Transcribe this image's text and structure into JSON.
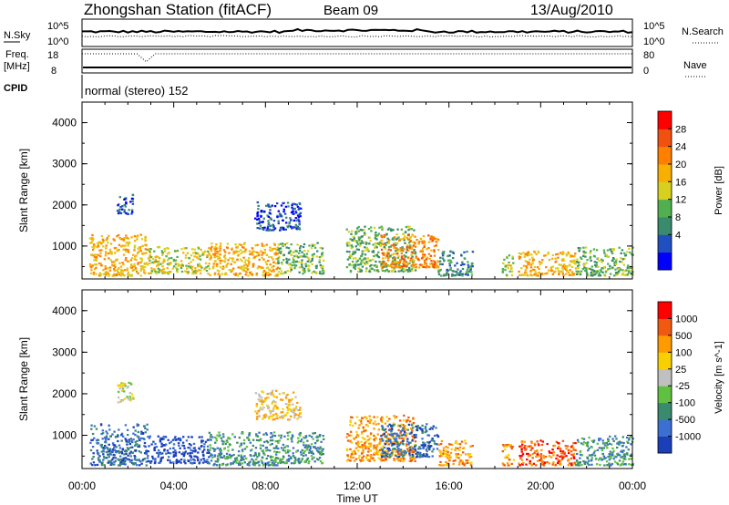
{
  "header": {
    "station": "Zhongshan Station (fitACF)",
    "beam": "Beam 09",
    "date": "13/Aug/2010"
  },
  "top_panel": {
    "nsky_label": "N.Sky",
    "nsky_ticks": [
      "10^5",
      "10^0"
    ],
    "nsearch_label": "N.Search",
    "nsearch_ticks": [
      "10^5",
      "10^0"
    ],
    "freq_label_1": "Freq.",
    "freq_label_2": "[MHz]",
    "freq_ticks": [
      "18",
      "8"
    ],
    "nave_label": "Nave",
    "nave_ticks": [
      "80",
      "0"
    ],
    "cpid_label": "CPID",
    "cpid_value": "normal (stereo) 152"
  },
  "chart_data": [
    {
      "type": "heatmap",
      "name": "power",
      "xlabel": "",
      "ylabel": "Slant Range [km]",
      "ylim": [
        200,
        4500
      ],
      "y_ticks": [
        "4000",
        "3000",
        "2000",
        "1000"
      ],
      "colorbar": {
        "label": "Power [dB]",
        "tick_labels": [
          "28",
          "24",
          "20",
          "16",
          "12",
          "8",
          "4"
        ],
        "colors": [
          "#0000ff",
          "#2050c0",
          "#3a8a6e",
          "#50b050",
          "#d8d020",
          "#f8b000",
          "#ff8000",
          "#f05010",
          "#ff0000"
        ]
      },
      "clusters": [
        {
          "t0": 0.3,
          "t1": 2.8,
          "r0": 300,
          "r1": 1300,
          "level": 5
        },
        {
          "t0": 1.5,
          "t1": 2.2,
          "r0": 1800,
          "r1": 2300,
          "level": 1
        },
        {
          "t0": 2.8,
          "t1": 5.5,
          "r0": 350,
          "r1": 1000,
          "level": 4
        },
        {
          "t0": 5.5,
          "t1": 8.5,
          "r0": 300,
          "r1": 1100,
          "level": 5
        },
        {
          "t0": 8.5,
          "t1": 10.5,
          "r0": 350,
          "r1": 1100,
          "level": 3
        },
        {
          "t0": 7.5,
          "t1": 9.5,
          "r0": 1400,
          "r1": 2100,
          "level": 1
        },
        {
          "t0": 11.5,
          "t1": 14.5,
          "r0": 400,
          "r1": 1500,
          "level": 3
        },
        {
          "t0": 13.0,
          "t1": 15.5,
          "r0": 500,
          "r1": 1300,
          "level": 6
        },
        {
          "t0": 15.5,
          "t1": 17.0,
          "r0": 300,
          "r1": 900,
          "level": 2
        },
        {
          "t0": 18.3,
          "t1": 18.8,
          "r0": 300,
          "r1": 800,
          "level": 4
        },
        {
          "t0": 19.0,
          "t1": 21.5,
          "r0": 300,
          "r1": 900,
          "level": 5
        },
        {
          "t0": 21.5,
          "t1": 24.0,
          "r0": 300,
          "r1": 1000,
          "level": 3
        }
      ]
    },
    {
      "type": "heatmap",
      "name": "velocity",
      "xlabel": "Time UT",
      "ylabel": "Slant Range [km]",
      "ylim": [
        200,
        4500
      ],
      "y_ticks": [
        "4000",
        "3000",
        "2000",
        "1000"
      ],
      "x_ticks": [
        "00:00",
        "04:00",
        "08:00",
        "12:00",
        "16:00",
        "20:00",
        "00:00"
      ],
      "xlim": [
        0,
        24
      ],
      "colorbar": {
        "label": "Velocity [m s^-1]",
        "tick_labels": [
          "1000",
          "500",
          "100",
          "25",
          "-25",
          "-100",
          "-500",
          "-1000"
        ],
        "colors": [
          "#1a3fb8",
          "#3b6fd0",
          "#3a8a6e",
          "#60c040",
          "#c0c0c0",
          "#f8d000",
          "#ff9a00",
          "#f05a10",
          "#ff0000"
        ]
      },
      "clusters": [
        {
          "t0": 0.3,
          "t1": 2.8,
          "r0": 300,
          "r1": 1300,
          "level": 1
        },
        {
          "t0": 1.5,
          "t1": 2.2,
          "r0": 1800,
          "r1": 2300,
          "level": 4
        },
        {
          "t0": 2.8,
          "t1": 5.5,
          "r0": 350,
          "r1": 1000,
          "level": 0
        },
        {
          "t0": 5.5,
          "t1": 8.5,
          "r0": 300,
          "r1": 1100,
          "level": 2
        },
        {
          "t0": 8.5,
          "t1": 10.5,
          "r0": 350,
          "r1": 1100,
          "level": 2
        },
        {
          "t0": 7.5,
          "t1": 9.5,
          "r0": 1400,
          "r1": 2100,
          "level": 5
        },
        {
          "t0": 11.5,
          "t1": 14.5,
          "r0": 400,
          "r1": 1500,
          "level": 6
        },
        {
          "t0": 13.0,
          "t1": 15.5,
          "r0": 500,
          "r1": 1300,
          "level": 1
        },
        {
          "t0": 15.5,
          "t1": 17.0,
          "r0": 300,
          "r1": 900,
          "level": 6
        },
        {
          "t0": 18.3,
          "t1": 18.8,
          "r0": 300,
          "r1": 800,
          "level": 6
        },
        {
          "t0": 19.0,
          "t1": 21.5,
          "r0": 300,
          "r1": 900,
          "level": 7
        },
        {
          "t0": 21.5,
          "t1": 24.0,
          "r0": 300,
          "r1": 1000,
          "level": 2
        }
      ]
    }
  ]
}
